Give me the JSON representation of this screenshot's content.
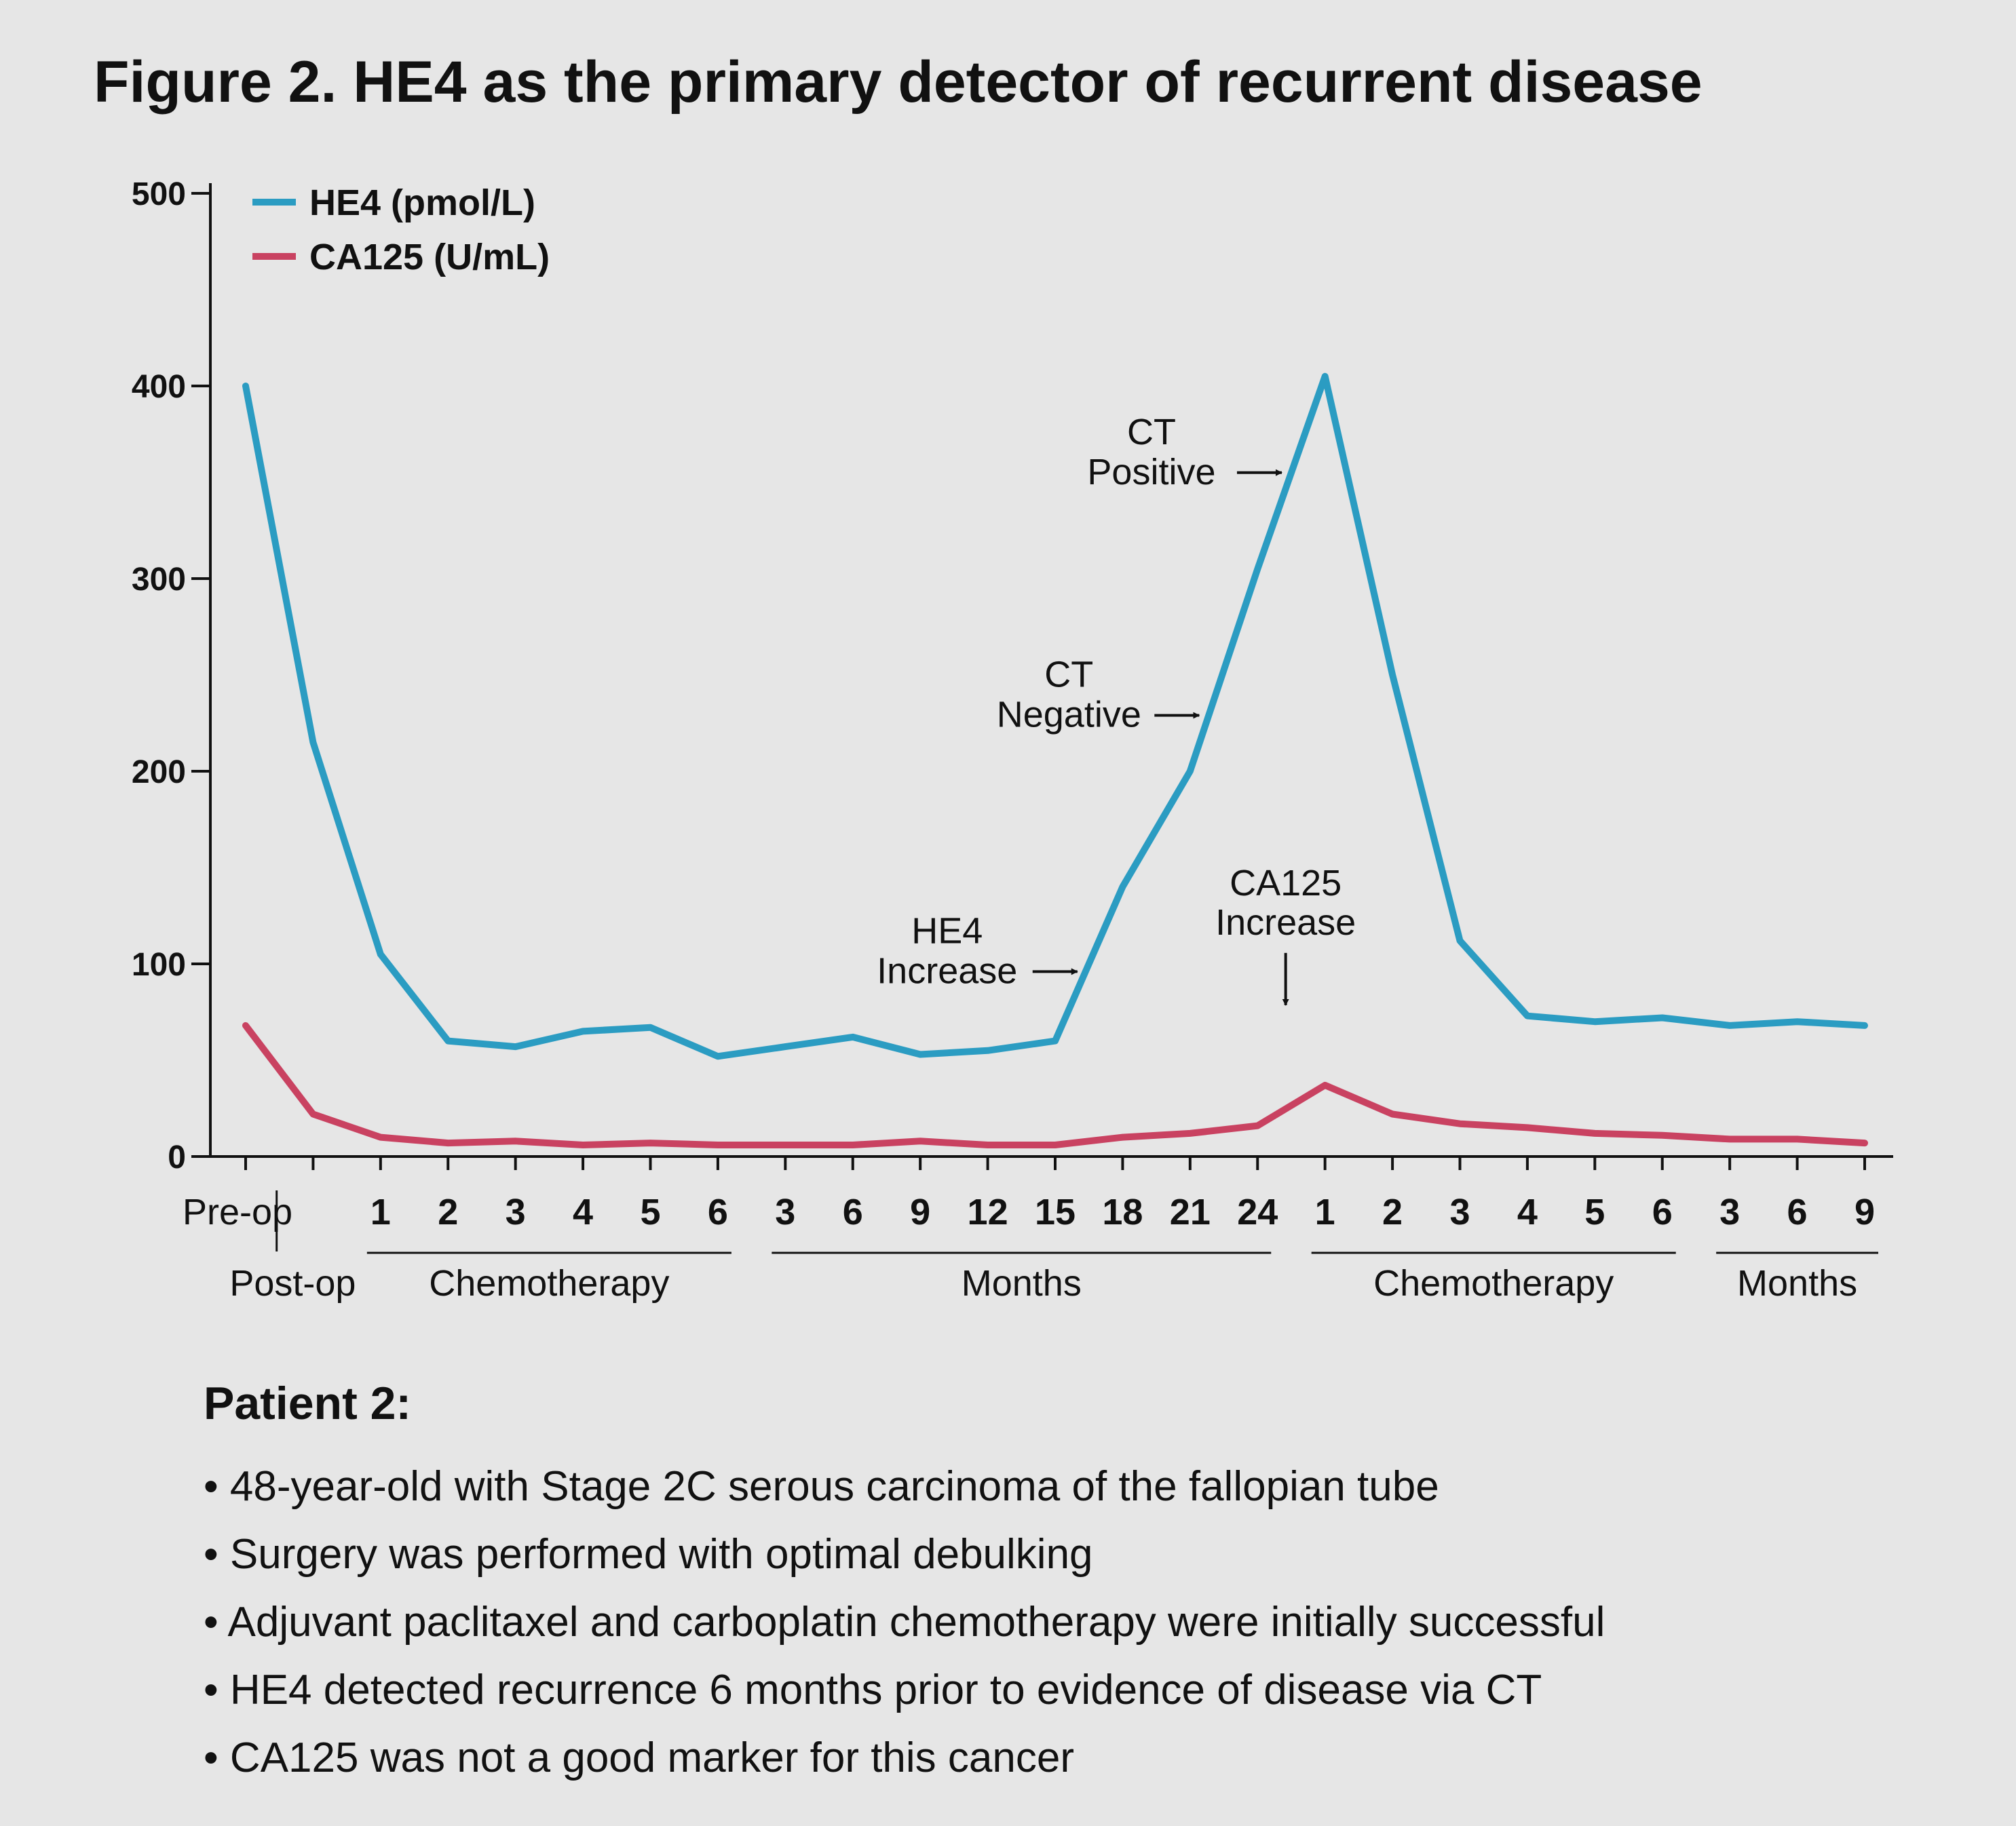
{
  "title": "Figure 2. HE4 as the primary detector of recurrent disease",
  "chart_data": {
    "type": "line",
    "categories": [
      "Pre-op",
      "Post-op",
      "1",
      "2",
      "3",
      "4",
      "5",
      "6",
      "3",
      "6",
      "9",
      "12",
      "15",
      "18",
      "21",
      "24",
      "1",
      "2",
      "3",
      "4",
      "5",
      "6",
      "3",
      "6",
      "9"
    ],
    "series": [
      {
        "name": "HE4 (pmol/L)",
        "color": "#2b9cc2",
        "values": [
          400,
          215,
          105,
          60,
          57,
          65,
          67,
          52,
          57,
          62,
          53,
          55,
          60,
          140,
          200,
          305,
          405,
          250,
          112,
          73,
          70,
          72,
          68,
          70,
          68
        ]
      },
      {
        "name": "CA125 (U/mL)",
        "color": "#c94261",
        "values": [
          68,
          22,
          10,
          7,
          8,
          6,
          7,
          6,
          6,
          6,
          8,
          6,
          6,
          10,
          12,
          16,
          37,
          22,
          17,
          15,
          12,
          11,
          9,
          9,
          7
        ]
      }
    ],
    "yticks": [
      "0",
      "100",
      "200",
      "300",
      "400",
      "500"
    ],
    "ylim": [
      0,
      500
    ],
    "xlabel": "",
    "ylabel": "",
    "grid": false,
    "legend_position": "top-left",
    "x_groups": [
      "Chemotherapy",
      "Months",
      "Chemotherapy",
      "Months"
    ],
    "annotations": [
      {
        "lines": [
          "HE4",
          "Increase"
        ],
        "arrow": "right",
        "at_index": 12
      },
      {
        "lines": [
          "CT",
          "Negative"
        ],
        "arrow": "right",
        "at_index": 14
      },
      {
        "lines": [
          "CT",
          "Positive"
        ],
        "arrow": "right",
        "at_index": 15
      },
      {
        "lines": [
          "CA125",
          "Increase"
        ],
        "arrow": "down",
        "at_index": 16
      }
    ]
  },
  "patient": {
    "title": "Patient 2:",
    "bullets": [
      "• 48-year-old with Stage 2C serous carcinoma of the fallopian tube",
      "• Surgery was performed with optimal debulking",
      "• Adjuvant paclitaxel and carboplatin chemotherapy were initially successful",
      "• HE4 detected recurrence 6 months prior to evidence of disease via CT",
      "• CA125 was not a good marker for this cancer"
    ]
  }
}
